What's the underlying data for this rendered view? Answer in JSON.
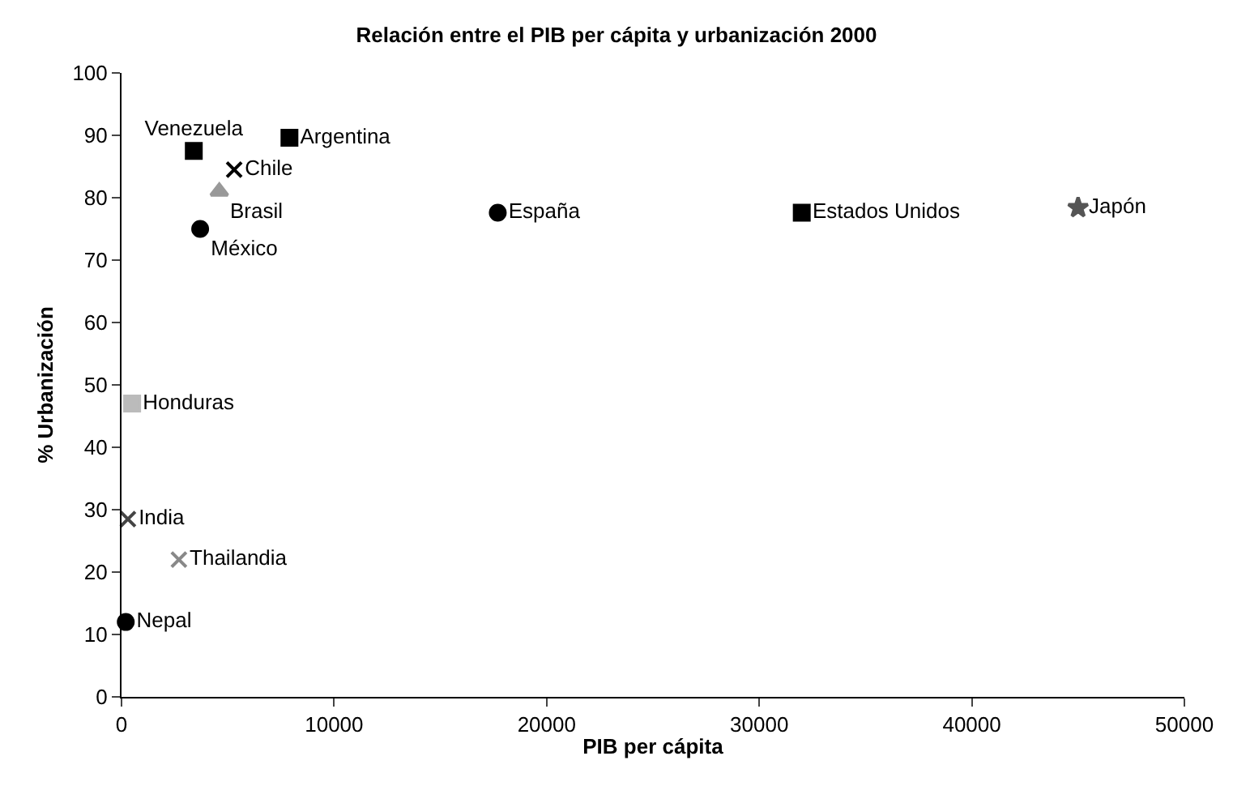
{
  "chart_data": {
    "type": "scatter",
    "title": "Relación entre el PIB per cápita y urbanización 2000",
    "xlabel": "PIB per cápita",
    "ylabel": "% Urbanización",
    "xlim": [
      0,
      50000
    ],
    "xticks": [
      0,
      10000,
      20000,
      30000,
      40000,
      50000
    ],
    "ylim": [
      0,
      100
    ],
    "yticks": [
      0,
      10,
      20,
      30,
      40,
      50,
      60,
      70,
      80,
      90,
      100
    ],
    "legend": false,
    "series": [
      {
        "name": "Venezuela",
        "color": "#000000",
        "marker": "square",
        "x": [
          3400
        ],
        "values": [
          87.5
        ]
      },
      {
        "name": "Argentina",
        "color": "#000000",
        "marker": "square",
        "x": [
          7900
        ],
        "values": [
          89.6
        ]
      },
      {
        "name": "Chile",
        "color": "#000000",
        "marker": "cross",
        "x": [
          5300
        ],
        "values": [
          84.5
        ]
      },
      {
        "name": "Brasil",
        "color": "#999999",
        "marker": "triangle",
        "x": [
          4600
        ],
        "values": [
          81
        ]
      },
      {
        "name": "México",
        "color": "#000000",
        "marker": "circle",
        "x": [
          3700
        ],
        "values": [
          75
        ]
      },
      {
        "name": "España",
        "color": "#000000",
        "marker": "circle",
        "x": [
          17700
        ],
        "values": [
          77.6
        ]
      },
      {
        "name": "Estados Unidos",
        "color": "#000000",
        "marker": "square",
        "x": [
          32000
        ],
        "values": [
          77.6
        ]
      },
      {
        "name": "Japón",
        "color": "#555555",
        "marker": "star",
        "x": [
          45000
        ],
        "values": [
          78.4
        ]
      },
      {
        "name": "Honduras",
        "color": "#bbbbbb",
        "marker": "square",
        "x": [
          500
        ],
        "values": [
          47
        ]
      },
      {
        "name": "India",
        "color": "#444444",
        "marker": "cross",
        "x": [
          300
        ],
        "values": [
          28.5
        ]
      },
      {
        "name": "Thailandia",
        "color": "#888888",
        "marker": "cross",
        "x": [
          2700
        ],
        "values": [
          22
        ]
      },
      {
        "name": "Nepal",
        "color": "#000000",
        "marker": "circle",
        "x": [
          200
        ],
        "values": [
          12
        ]
      }
    ]
  }
}
